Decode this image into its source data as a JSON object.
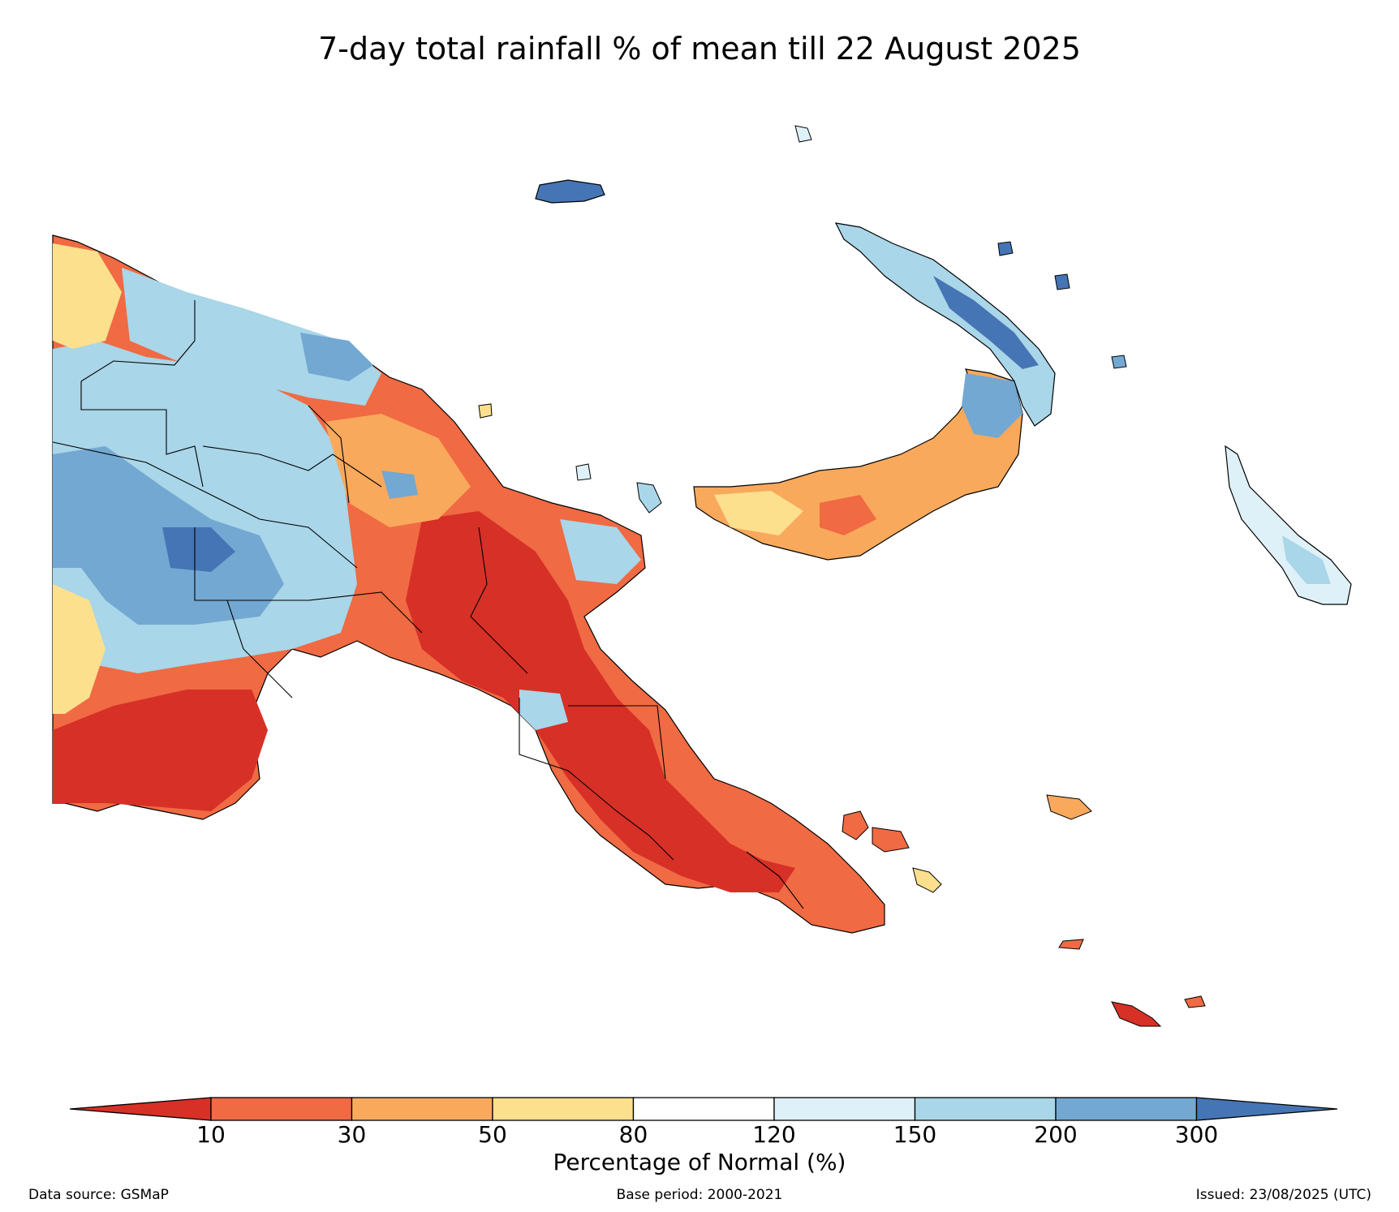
{
  "title": "7-day total rainfall % of mean till 22 August 2025",
  "colorbar": {
    "label": "Percentage of Normal (%)",
    "ticks": [
      "10",
      "30",
      "50",
      "80",
      "120",
      "150",
      "200",
      "300"
    ],
    "colors": [
      "#d73027",
      "#f06a43",
      "#f9a95c",
      "#fde08e",
      "#ffffff",
      "#dff1f8",
      "#a9d6e8",
      "#73a8d2",
      "#4575b4"
    ]
  },
  "footer": {
    "source": "Data source: GSMaP",
    "base_period": "Base period: 2000-2021",
    "issued": "Issued: 23/08/2025 (UTC)"
  }
}
